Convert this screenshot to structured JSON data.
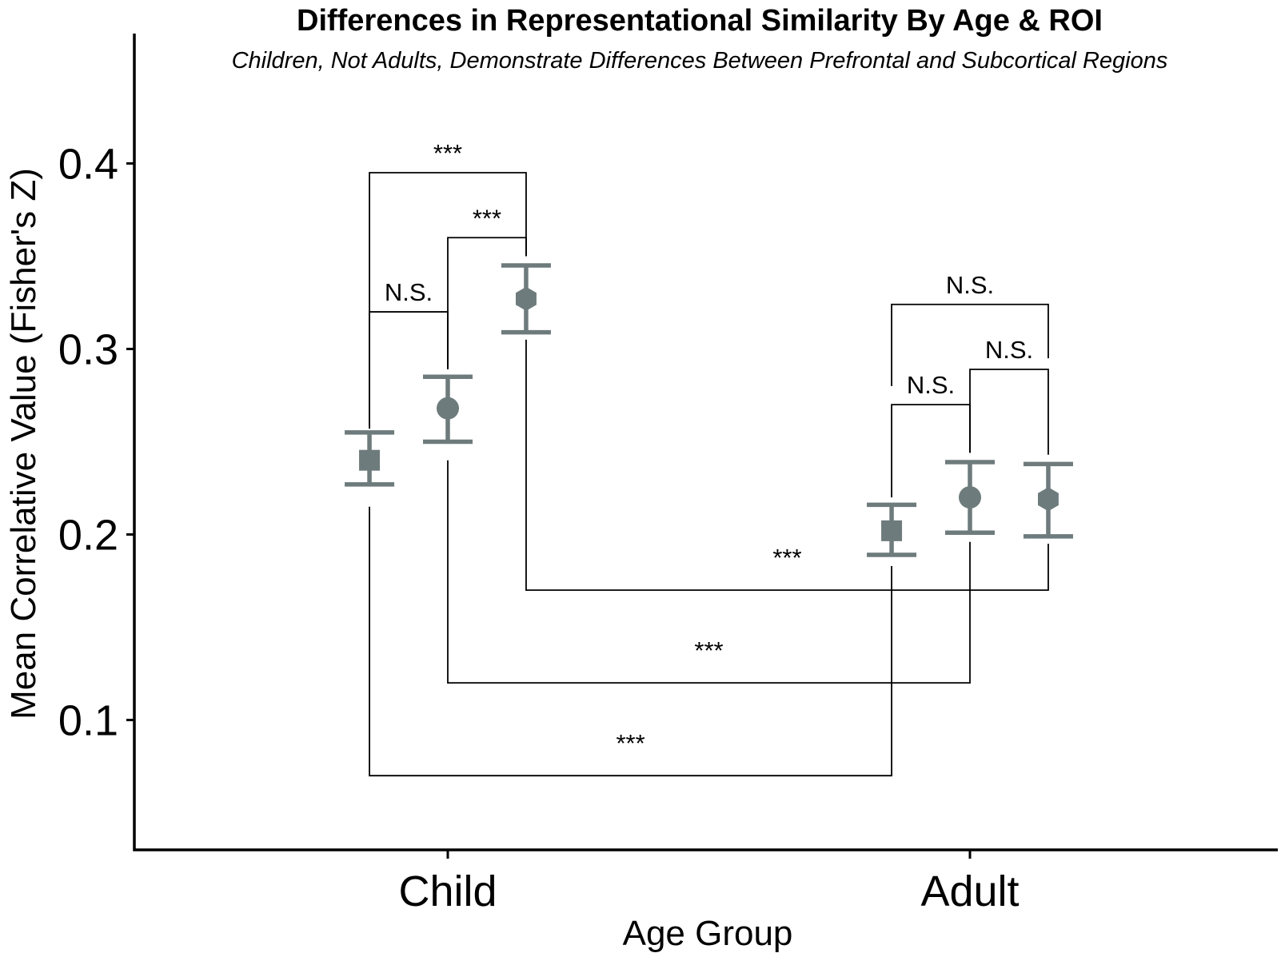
{
  "chart_data": {
    "type": "scatter",
    "title": "Differences in Representational Similarity By Age & ROI",
    "subtitle": "Children, Not Adults, Demonstrate Differences Between Prefrontal and Subcortical Regions",
    "xlabel": "Age Group",
    "ylabel": "Mean Correlative Value (Fisher's Z)",
    "categories": [
      "Child",
      "Adult"
    ],
    "ylim": [
      0.03,
      0.47
    ],
    "yticks": [
      0.1,
      0.2,
      0.3,
      0.4
    ],
    "ytick_labels": [
      "0.1",
      "0.2",
      "0.3",
      "0.4"
    ],
    "grid": false,
    "legend": "none",
    "marker_color": "#6e7b7c",
    "dodge": 0.3,
    "series": [
      {
        "marker": "square",
        "x": [
          "Child",
          "Adult"
        ],
        "mean": [
          0.24,
          0.202
        ],
        "lower": [
          0.227,
          0.189
        ],
        "upper": [
          0.255,
          0.216
        ]
      },
      {
        "marker": "circle",
        "x": [
          "Child",
          "Adult"
        ],
        "mean": [
          0.268,
          0.22
        ],
        "lower": [
          0.25,
          0.201
        ],
        "upper": [
          0.285,
          0.239
        ]
      },
      {
        "marker": "hexagon",
        "x": [
          "Child",
          "Adult"
        ],
        "mean": [
          0.327,
          0.219
        ],
        "lower": [
          0.309,
          0.199
        ],
        "upper": [
          0.345,
          0.238
        ]
      }
    ],
    "comparisons": [
      {
        "group1": [
          "Child",
          0
        ],
        "group2": [
          "Child",
          2
        ],
        "label": "***",
        "bracket_y": 0.395,
        "direction": "up",
        "end1": 0.257,
        "end2": 0.35
      },
      {
        "group1": [
          "Child",
          1
        ],
        "group2": [
          "Child",
          2
        ],
        "label": "***",
        "bracket_y": 0.36,
        "direction": "up",
        "end1": 0.29,
        "end2": 0.35
      },
      {
        "group1": [
          "Child",
          0
        ],
        "group2": [
          "Child",
          1
        ],
        "label": "N.S.",
        "bracket_y": 0.32,
        "direction": "up",
        "end1": 0.259,
        "end2": 0.289
      },
      {
        "group1": [
          "Adult",
          0
        ],
        "group2": [
          "Adult",
          2
        ],
        "label": "N.S.",
        "bracket_y": 0.324,
        "direction": "up",
        "end1": 0.28,
        "end2": 0.295
      },
      {
        "group1": [
          "Adult",
          1
        ],
        "group2": [
          "Adult",
          2
        ],
        "label": "N.S.",
        "bracket_y": 0.289,
        "direction": "up",
        "end1": 0.244,
        "end2": 0.243
      },
      {
        "group1": [
          "Adult",
          0
        ],
        "group2": [
          "Adult",
          1
        ],
        "label": "N.S.",
        "bracket_y": 0.27,
        "direction": "up",
        "end1": 0.22,
        "end2": 0.244
      },
      {
        "group1": [
          "Child",
          2
        ],
        "group2": [
          "Adult",
          2
        ],
        "label": "***",
        "bracket_y": 0.17,
        "direction": "down",
        "end1": 0.305,
        "end2": 0.195,
        "label_x_frac": 0.5
      },
      {
        "group1": [
          "Child",
          1
        ],
        "group2": [
          "Adult",
          1
        ],
        "label": "***",
        "bracket_y": 0.12,
        "direction": "down",
        "end1": 0.24,
        "end2": 0.196,
        "label_x_frac": 0.5
      },
      {
        "group1": [
          "Child",
          0
        ],
        "group2": [
          "Adult",
          0
        ],
        "label": "***",
        "bracket_y": 0.07,
        "direction": "down",
        "end1": 0.215,
        "end2": 0.183,
        "label_x_frac": 0.5
      }
    ]
  }
}
